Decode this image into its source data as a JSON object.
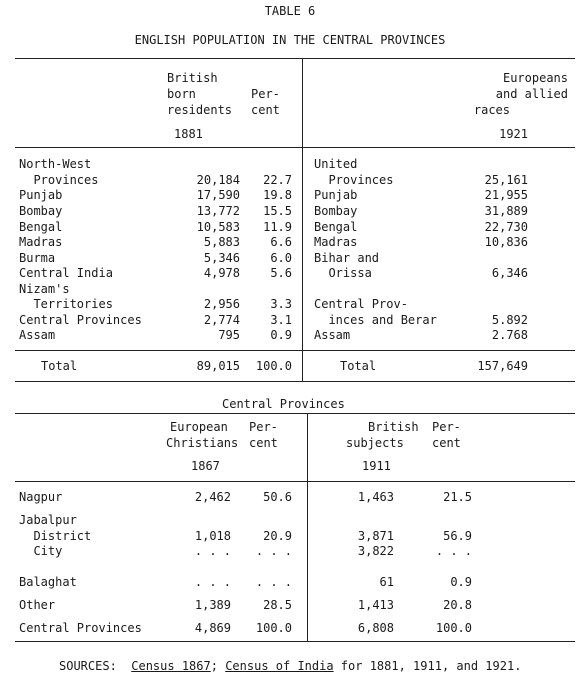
{
  "table_number": "TABLE 6",
  "title": "ENGLISH POPULATION IN THE CENTRAL PROVINCES",
  "top": {
    "left_header": {
      "col1_line1": "British",
      "col1_line2": "born",
      "col1_line3": "residents",
      "col2_line1": "Per-",
      "col2_line2": "cent",
      "year": "1881"
    },
    "right_header": {
      "line1": "Europeans",
      "line2": "and allied",
      "line3": "races",
      "year": "1921"
    },
    "left_rows": [
      {
        "name": "North-West",
        "number": "",
        "percent": ""
      },
      {
        "name": "  Provinces",
        "number": "20,184",
        "percent": "22.7"
      },
      {
        "name": "Punjab",
        "number": "17,590",
        "percent": "19.8"
      },
      {
        "name": "Bombay",
        "number": "13,772",
        "percent": "15.5"
      },
      {
        "name": "Bengal",
        "number": "10,583",
        "percent": "11.9"
      },
      {
        "name": "Madras",
        "number": "5,883",
        "percent": "6.6"
      },
      {
        "name": "Burma",
        "number": "5,346",
        "percent": "6.0"
      },
      {
        "name": "Central India",
        "number": "4,978",
        "percent": "5.6"
      },
      {
        "name": "Nizam's",
        "number": "",
        "percent": ""
      },
      {
        "name": "  Territories",
        "number": "2,956",
        "percent": "3.3"
      },
      {
        "name": "Central Provinces",
        "number": "2,774",
        "percent": "3.1"
      },
      {
        "name": "Assam",
        "number": "795",
        "percent": "0.9"
      }
    ],
    "left_total": {
      "label": "Total",
      "number": "89,015",
      "percent": "100.0"
    },
    "right_rows": [
      {
        "name": "United",
        "number": ""
      },
      {
        "name": "  Provinces",
        "number": "25,161"
      },
      {
        "name": "Punjab",
        "number": "21,955"
      },
      {
        "name": "Bombay",
        "number": "31,889"
      },
      {
        "name": "Bengal",
        "number": "22,730"
      },
      {
        "name": "Madras",
        "number": "10,836"
      },
      {
        "name": "Bihar and",
        "number": ""
      },
      {
        "name": "  Orissa",
        "number": "6,346"
      },
      {
        "name": "",
        "number": ""
      },
      {
        "name": "Central Prov-",
        "number": ""
      },
      {
        "name": "  inces and Berar",
        "number": "5.892"
      },
      {
        "name": "Assam",
        "number": "2.768"
      }
    ],
    "right_total": {
      "label": "Total",
      "number": "157,649"
    }
  },
  "bottom": {
    "subtitle": "Central Provinces",
    "header": {
      "a_line1": "European",
      "a_line2": "Christians",
      "a_pct1": "Per-",
      "a_pct2": "cent",
      "a_year": "1867",
      "b_line1": "British",
      "b_line2": "subjects",
      "b_pct1": "Per-",
      "b_pct2": "cent",
      "b_year": "1911"
    },
    "rows": [
      {
        "name": "Nagpur",
        "a": "2,462",
        "ap": "50.6",
        "b": "1,463",
        "bp": "21.5"
      },
      {
        "name": "Jabalpur",
        "a": "",
        "ap": "",
        "b": "",
        "bp": ""
      },
      {
        "name": "  District",
        "a": "1,018",
        "ap": "20.9",
        "b": "3,871",
        "bp": "56.9"
      },
      {
        "name": "  City",
        "a": ". . .",
        "ap": ". . .",
        "b": "3,822",
        "bp": ". . ."
      },
      {
        "name": "Balaghat",
        "a": ". . .",
        "ap": ". . .",
        "b": "61",
        "bp": "0.9"
      },
      {
        "name": "Other",
        "a": "1,389",
        "ap": "28.5",
        "b": "1,413",
        "bp": "20.8"
      },
      {
        "name": "Central Provinces",
        "a": "4,869",
        "ap": "100.0",
        "b": "6,808",
        "bp": "100.0"
      }
    ]
  },
  "sources": {
    "label": "SOURCES:",
    "cite1": "Census 1867",
    "sep1": ";",
    "cite2": "Census of India",
    "rest": " for 1881, 1911, and 1921."
  }
}
